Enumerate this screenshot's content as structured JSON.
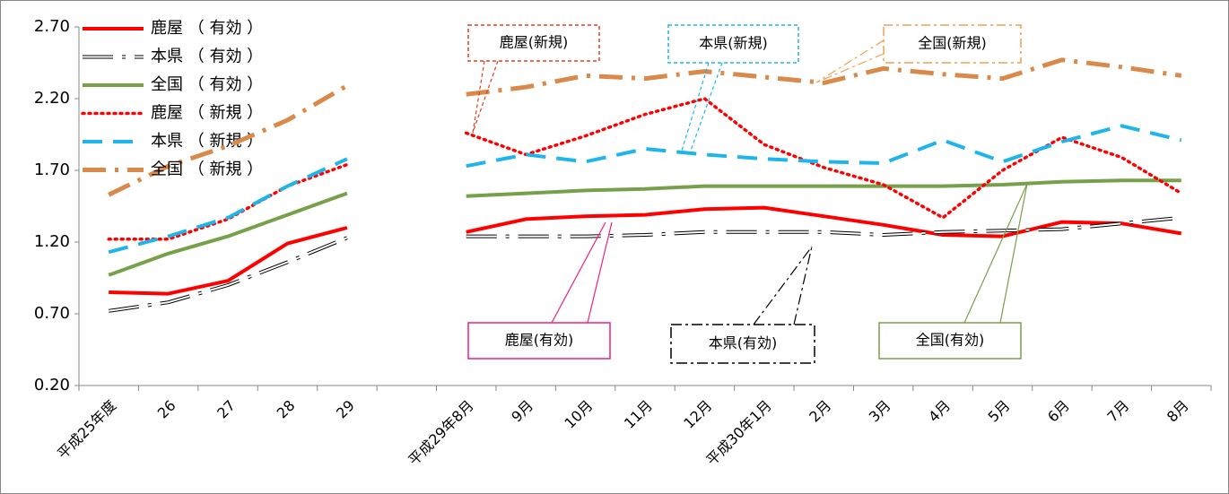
{
  "chart_data": {
    "type": "line",
    "categories": [
      "平成25年度",
      "26",
      "27",
      "28",
      "29",
      null,
      "平成29年8月",
      "9月",
      "10月",
      "11月",
      "12月",
      "平成30年1月",
      "2月",
      "3月",
      "4月",
      "5月",
      "6月",
      "7月",
      "8月"
    ],
    "series": [
      {
        "name": "鹿屋 （ 有効 ）",
        "color": "#ff0000",
        "style": "solid",
        "values": [
          0.85,
          0.84,
          0.93,
          1.19,
          1.3,
          null,
          1.27,
          1.36,
          1.38,
          1.39,
          1.43,
          1.44,
          1.38,
          1.32,
          1.25,
          1.24,
          1.34,
          1.33,
          1.26
        ]
      },
      {
        "name": "本県 （ 有効 ）",
        "color": "#000000",
        "style": "outline",
        "values": [
          0.72,
          0.78,
          0.9,
          1.06,
          1.23,
          null,
          1.24,
          1.24,
          1.24,
          1.25,
          1.27,
          1.27,
          1.27,
          1.25,
          1.27,
          1.28,
          1.29,
          1.33,
          1.37
        ]
      },
      {
        "name": "全国 （ 有効 ）",
        "color": "#77a04a",
        "style": "solid",
        "values": [
          0.97,
          1.12,
          1.24,
          1.39,
          1.54,
          null,
          1.52,
          1.54,
          1.56,
          1.57,
          1.59,
          1.59,
          1.59,
          1.59,
          1.59,
          1.6,
          1.62,
          1.63,
          1.63
        ]
      },
      {
        "name": "鹿屋 （ 新規 ）",
        "color": "#ff0000",
        "style": "dotted",
        "values": [
          1.22,
          1.22,
          1.36,
          1.59,
          1.74,
          null,
          1.96,
          1.81,
          1.94,
          2.09,
          2.2,
          1.88,
          1.72,
          1.6,
          1.37,
          1.7,
          1.93,
          1.79,
          1.54
        ]
      },
      {
        "name": "本県 （ 新規 ）",
        "color": "#1fb5ea",
        "style": "dashed",
        "values": [
          1.13,
          1.24,
          1.37,
          1.59,
          1.78,
          null,
          1.73,
          1.81,
          1.76,
          1.85,
          1.81,
          1.78,
          1.76,
          1.75,
          1.91,
          1.76,
          1.9,
          2.01,
          1.91
        ]
      },
      {
        "name": "全国 （ 新規 ）",
        "color": "#d9894a",
        "style": "dashdot",
        "values": [
          1.53,
          1.73,
          1.87,
          2.05,
          2.29,
          null,
          2.23,
          2.28,
          2.36,
          2.34,
          2.39,
          2.35,
          2.31,
          2.41,
          2.37,
          2.34,
          2.47,
          2.42,
          2.36
        ]
      }
    ],
    "ylim": [
      0.2,
      2.7
    ],
    "yticks": [
      {
        "value": 0.2,
        "label": "0.20"
      },
      {
        "value": 0.7,
        "label": "0.70"
      },
      {
        "value": 1.2,
        "label": "1.20"
      },
      {
        "value": 1.7,
        "label": "1.70"
      },
      {
        "value": 2.2,
        "label": "2.20"
      },
      {
        "value": 2.7,
        "label": "2.70"
      }
    ],
    "legend": "top-left",
    "annotations": [
      "鹿屋(新規)",
      "本県(新規)",
      "全国(新規)",
      "鹿屋(有効)",
      "本県(有効)",
      "全国(有効)"
    ]
  }
}
